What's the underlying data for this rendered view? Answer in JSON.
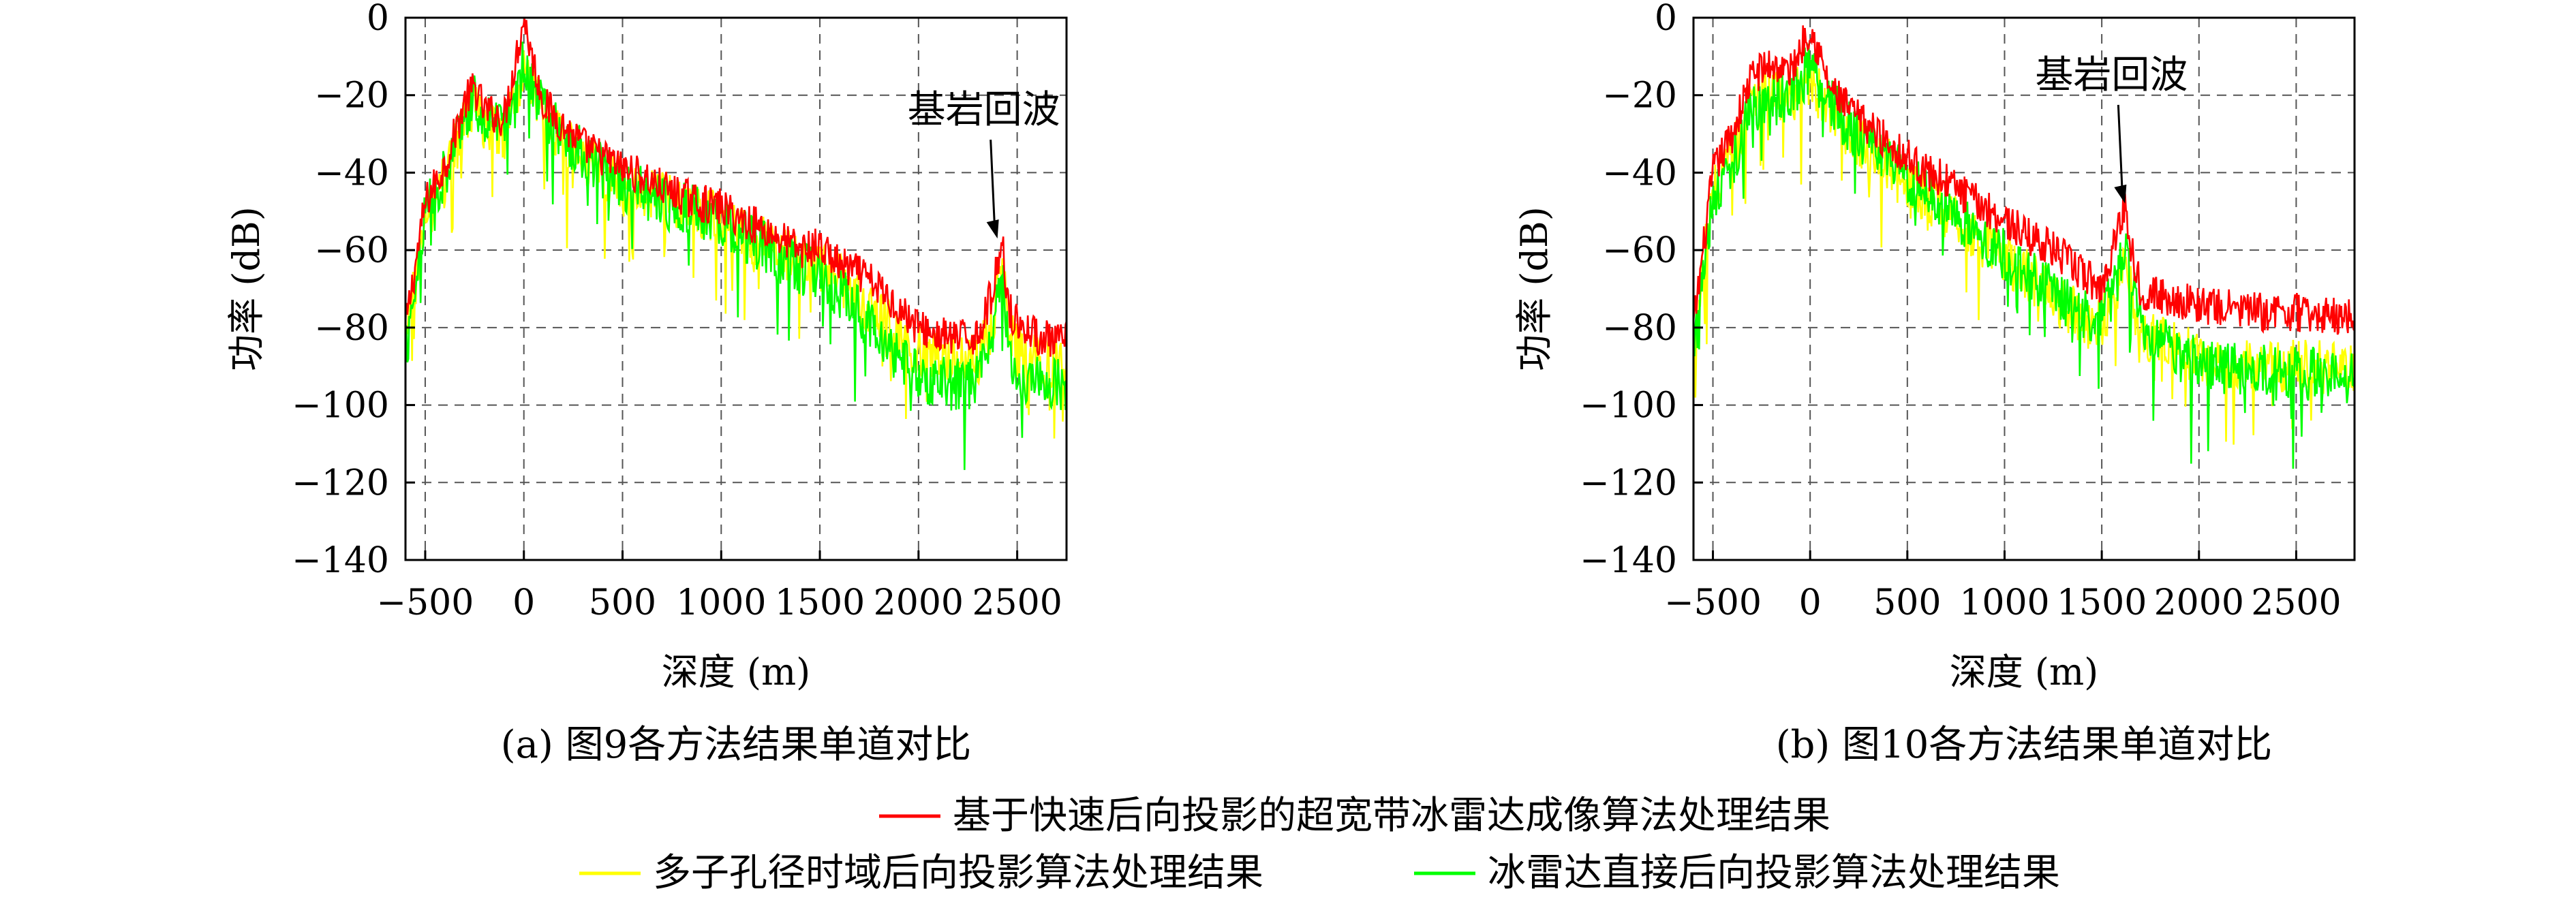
{
  "chart_data": [
    {
      "type": "line",
      "caption": "(a) 图9各方法结果单道对比",
      "xlabel": "深度 (m)",
      "ylabel": "功率 (dB)",
      "xlim": [
        -600,
        2750
      ],
      "ylim": [
        -140,
        0
      ],
      "xticks": [
        -500,
        0,
        500,
        1000,
        1500,
        2000,
        2500
      ],
      "xtick_labels": [
        "−500",
        "0",
        "500",
        "1000",
        "1500",
        "2000",
        "2500"
      ],
      "yticks": [
        0,
        -20,
        -40,
        -60,
        -80,
        -100,
        -120,
        -140
      ],
      "ytick_labels": [
        "0",
        "−20",
        "−40",
        "−60",
        "−80",
        "−100",
        "−120",
        "−140"
      ],
      "grid": true,
      "annotation": {
        "text": "基岩回波",
        "x": 2400,
        "y": -57
      },
      "series": [
        {
          "name": "基于快速后向投影的超宽带冰雷达成像算法处理结果",
          "color": "#ff0000",
          "x": [
            -600,
            -500,
            -400,
            -300,
            -250,
            -200,
            -100,
            0,
            50,
            100,
            200,
            300,
            400,
            500,
            600,
            700,
            800,
            900,
            1000,
            1100,
            1200,
            1300,
            1400,
            1500,
            1600,
            1700,
            1800,
            1900,
            2000,
            2100,
            2200,
            2300,
            2380,
            2420,
            2460,
            2500,
            2600,
            2700,
            2750
          ],
          "y": [
            -80,
            -48,
            -38,
            -22,
            -18,
            -24,
            -26,
            0,
            -12,
            -22,
            -28,
            -33,
            -36,
            -39,
            -41,
            -44,
            -46,
            -48,
            -49,
            -52,
            -54,
            -57,
            -60,
            -59,
            -64,
            -66,
            -70,
            -75,
            -80,
            -82,
            -83,
            -82,
            -70,
            -57,
            -75,
            -79,
            -82,
            -84,
            -83
          ]
        },
        {
          "name": "多子孔径时域后向投影算法处理结果",
          "color": "#ffff00",
          "x": [
            -600,
            -500,
            -400,
            -300,
            -250,
            -200,
            -100,
            0,
            50,
            100,
            200,
            300,
            400,
            500,
            600,
            700,
            800,
            900,
            1000,
            1100,
            1200,
            1300,
            1400,
            1500,
            1600,
            1700,
            1800,
            1900,
            2000,
            2100,
            2200,
            2300,
            2380,
            2420,
            2460,
            2500,
            2600,
            2700,
            2750
          ],
          "y": [
            -85,
            -52,
            -42,
            -26,
            -22,
            -28,
            -30,
            -14,
            -18,
            -26,
            -32,
            -36,
            -40,
            -43,
            -44,
            -46,
            -48,
            -50,
            -52,
            -55,
            -58,
            -60,
            -63,
            -64,
            -68,
            -72,
            -77,
            -82,
            -86,
            -88,
            -89,
            -88,
            -78,
            -62,
            -80,
            -86,
            -88,
            -90,
            -89
          ]
        },
        {
          "name": "冰雷达直接后向投影算法处理结果",
          "color": "#00ff00",
          "x": [
            -600,
            -500,
            -400,
            -300,
            -250,
            -200,
            -100,
            0,
            50,
            100,
            200,
            300,
            400,
            500,
            600,
            700,
            800,
            900,
            1000,
            1100,
            1200,
            1300,
            1400,
            1500,
            1600,
            1700,
            1800,
            1900,
            2000,
            2100,
            2200,
            2300,
            2380,
            2420,
            2460,
            2500,
            2600,
            2700,
            2750
          ],
          "y": [
            -88,
            -50,
            -40,
            -25,
            -20,
            -27,
            -29,
            -12,
            -17,
            -25,
            -31,
            -35,
            -39,
            -43,
            -45,
            -47,
            -49,
            -51,
            -53,
            -56,
            -59,
            -62,
            -65,
            -66,
            -71,
            -76,
            -82,
            -88,
            -92,
            -94,
            -95,
            -94,
            -82,
            -65,
            -85,
            -92,
            -94,
            -95,
            -95
          ]
        }
      ]
    },
    {
      "type": "line",
      "caption": "(b) 图10各方法结果单道对比",
      "xlabel": "深度 (m)",
      "ylabel": "功率 (dB)",
      "xlim": [
        -600,
        2800
      ],
      "ylim": [
        -140,
        0
      ],
      "xticks": [
        -500,
        0,
        500,
        1000,
        1500,
        2000,
        2500
      ],
      "xtick_labels": [
        "−500",
        "0",
        "500",
        "1000",
        "1500",
        "2000",
        "2500"
      ],
      "yticks": [
        0,
        -20,
        -40,
        -60,
        -80,
        -100,
        -120,
        -140
      ],
      "ytick_labels": [
        "0",
        "−20",
        "−40",
        "−60",
        "−80",
        "−100",
        "−120",
        "−140"
      ],
      "grid": true,
      "annotation": {
        "text": "基岩回波",
        "x": 1620,
        "y": -48
      },
      "series": [
        {
          "name": "基于快速后向投影的超宽带冰雷达成像算法处理结果",
          "color": "#ff0000",
          "x": [
            -600,
            -500,
            -400,
            -300,
            -200,
            -100,
            0,
            100,
            200,
            300,
            400,
            500,
            600,
            700,
            800,
            900,
            1000,
            1100,
            1200,
            1300,
            1400,
            1500,
            1580,
            1620,
            1660,
            1700,
            1800,
            1900,
            2000,
            2100,
            2200,
            2300,
            2400,
            2500,
            2600,
            2700,
            2800
          ],
          "y": [
            -80,
            -40,
            -30,
            -15,
            -12,
            -14,
            -2,
            -18,
            -24,
            -28,
            -32,
            -36,
            -40,
            -42,
            -46,
            -49,
            -52,
            -56,
            -58,
            -62,
            -66,
            -70,
            -55,
            -48,
            -62,
            -70,
            -72,
            -73,
            -74,
            -75,
            -75,
            -76,
            -76,
            -76,
            -77,
            -77,
            -77
          ]
        },
        {
          "name": "多子孔径时域后向投影算法处理结果",
          "color": "#ffff00",
          "x": [
            -600,
            -500,
            -400,
            -300,
            -200,
            -100,
            0,
            100,
            200,
            300,
            400,
            500,
            600,
            700,
            800,
            900,
            1000,
            1100,
            1200,
            1300,
            1400,
            1500,
            1580,
            1620,
            1660,
            1700,
            1800,
            1900,
            2000,
            2100,
            2200,
            2300,
            2400,
            2500,
            2600,
            2700,
            2800
          ],
          "y": [
            -85,
            -45,
            -36,
            -22,
            -18,
            -20,
            -16,
            -24,
            -30,
            -34,
            -38,
            -42,
            -46,
            -50,
            -54,
            -58,
            -62,
            -66,
            -70,
            -74,
            -77,
            -79,
            -70,
            -62,
            -72,
            -80,
            -84,
            -86,
            -88,
            -89,
            -89,
            -90,
            -90,
            -90,
            -90,
            -91,
            -91
          ]
        },
        {
          "name": "冰雷达直接后向投影算法处理结果",
          "color": "#00ff00",
          "x": [
            -600,
            -500,
            -400,
            -300,
            -200,
            -100,
            0,
            100,
            200,
            300,
            400,
            500,
            600,
            700,
            800,
            900,
            1000,
            1100,
            1200,
            1300,
            1400,
            1500,
            1580,
            1620,
            1660,
            1700,
            1800,
            1900,
            2000,
            2100,
            2200,
            2300,
            2400,
            2500,
            2600,
            2700,
            2800
          ],
          "y": [
            -88,
            -46,
            -37,
            -24,
            -20,
            -22,
            -12,
            -22,
            -28,
            -33,
            -37,
            -41,
            -45,
            -49,
            -53,
            -57,
            -61,
            -65,
            -69,
            -73,
            -76,
            -78,
            -68,
            -60,
            -71,
            -79,
            -84,
            -87,
            -89,
            -90,
            -91,
            -91,
            -92,
            -92,
            -92,
            -92,
            -93
          ]
        }
      ]
    }
  ],
  "legend": [
    {
      "label": "基于快速后向投影的超宽带冰雷达成像算法处理结果",
      "color": "#ff0000"
    },
    {
      "label": "多子孔径时域后向投影算法处理结果",
      "color": "#ffff00"
    },
    {
      "label": "冰雷达直接后向投影算法处理结果",
      "color": "#00ff00"
    }
  ]
}
